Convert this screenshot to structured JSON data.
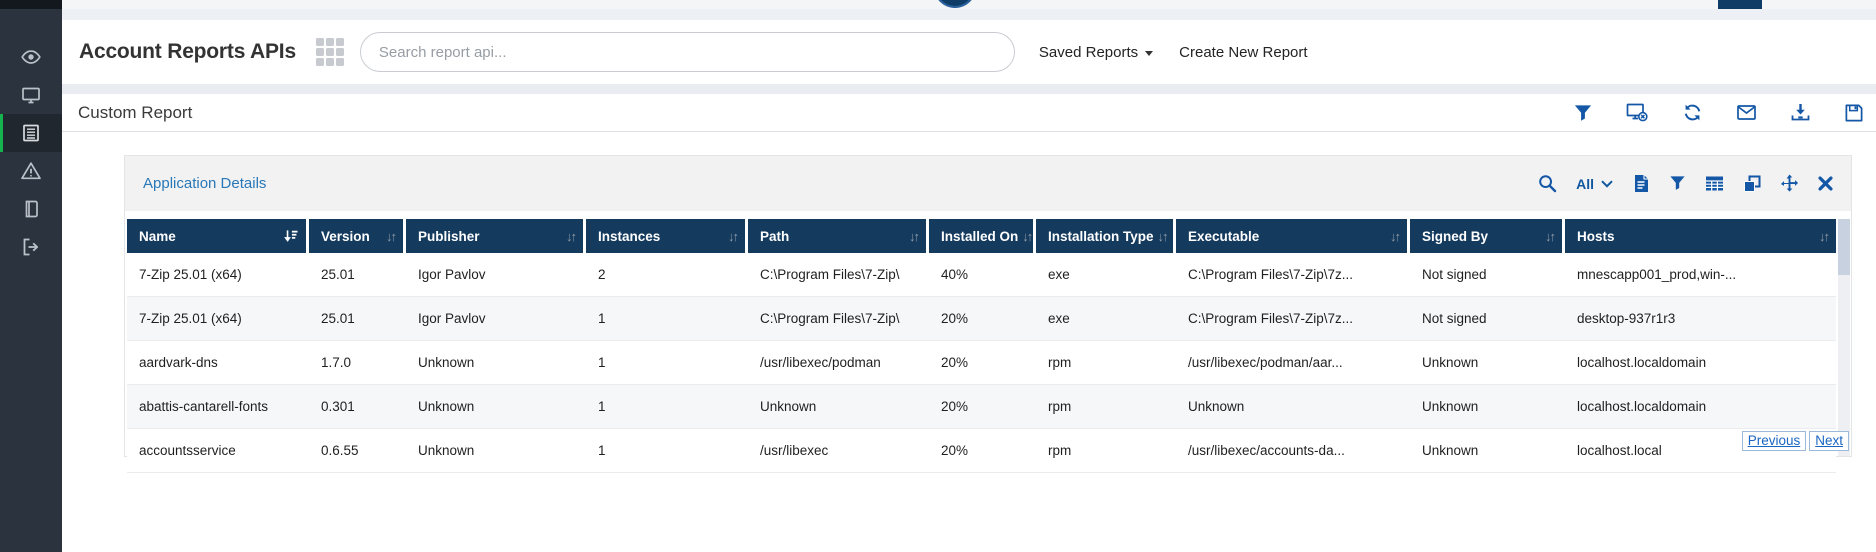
{
  "colors": {
    "sidebar_bg": "#2a333e",
    "active_green": "#14b34f",
    "table_header_navy": "#143a5e",
    "icon_blue": "#1357a6",
    "widget_title_blue": "#2878b8",
    "link_blue": "#1b66c2"
  },
  "sidebar": {
    "items": [
      {
        "icon": "eye-icon",
        "active": false
      },
      {
        "icon": "monitor-icon",
        "active": false
      },
      {
        "icon": "report-list-icon",
        "active": true
      },
      {
        "icon": "alert-triangle-icon",
        "active": false
      },
      {
        "icon": "book-icon",
        "active": false
      },
      {
        "icon": "logout-icon",
        "active": false
      }
    ]
  },
  "header": {
    "title": "Account Reports APIs",
    "grid_icon": "apps-grid-icon",
    "search_placeholder": "Search report api...",
    "search_value": "",
    "saved_reports_label": "Saved Reports",
    "create_new_report_label": "Create New Report"
  },
  "report_bar": {
    "title": "Custom Report",
    "icons": [
      "filter-icon",
      "monitor-block-icon",
      "refresh-icon",
      "mail-icon",
      "download-icon",
      "save-icon"
    ]
  },
  "widget": {
    "title": "Application Details",
    "toolbar": {
      "search_icon": "search-icon",
      "scope_label": "All",
      "scope_chevron": "chevron-down-icon",
      "icons": [
        "document-icon",
        "filter-icon",
        "table-icon",
        "copy-icon",
        "move-icon",
        "close-icon"
      ]
    },
    "table": {
      "columns": [
        {
          "label": "Name",
          "sorted": true
        },
        {
          "label": "Version",
          "sorted": false
        },
        {
          "label": "Publisher",
          "sorted": false
        },
        {
          "label": "Instances",
          "sorted": false
        },
        {
          "label": "Path",
          "sorted": false
        },
        {
          "label": "Installed On",
          "sorted": false
        },
        {
          "label": "Installation Type",
          "sorted": false
        },
        {
          "label": "Executable",
          "sorted": false
        },
        {
          "label": "Signed By",
          "sorted": false
        },
        {
          "label": "Hosts",
          "sorted": false
        }
      ],
      "rows": [
        [
          "7-Zip 25.01 (x64)",
          "25.01",
          "Igor Pavlov",
          "2",
          "C:\\Program Files\\7-Zip\\",
          "40%",
          "exe",
          "C:\\Program Files\\7-Zip\\7z...",
          "Not signed",
          "mnescapp001_prod,win-..."
        ],
        [
          "7-Zip 25.01 (x64)",
          "25.01",
          "Igor Pavlov",
          "1",
          "C:\\Program Files\\7-Zip\\",
          "20%",
          "exe",
          "C:\\Program Files\\7-Zip\\7z...",
          "Not signed",
          "desktop-937r1r3"
        ],
        [
          "aardvark-dns",
          "1.7.0",
          "Unknown",
          "1",
          "/usr/libexec/podman",
          "20%",
          "rpm",
          "/usr/libexec/podman/aar...",
          "Unknown",
          "localhost.localdomain"
        ],
        [
          "abattis-cantarell-fonts",
          "0.301",
          "Unknown",
          "1",
          "Unknown",
          "20%",
          "rpm",
          "Unknown",
          "Unknown",
          "localhost.localdomain"
        ],
        [
          "accountsservice",
          "0.6.55",
          "Unknown",
          "1",
          "/usr/libexec",
          "20%",
          "rpm",
          "/usr/libexec/accounts-da...",
          "Unknown",
          "localhost.local"
        ]
      ]
    },
    "pagination": {
      "previous_label": "Previous",
      "next_label": "Next"
    }
  }
}
